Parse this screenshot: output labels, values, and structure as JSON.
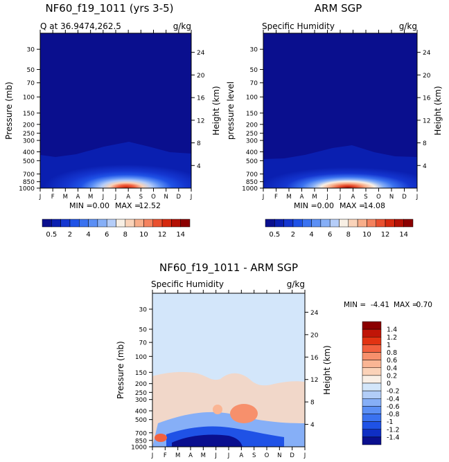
{
  "chart_data": [
    {
      "type": "contour",
      "id": "model",
      "title": "NF60_f19_1011 (yrs 3-5)",
      "subtitle": "Q at 36.9474,262.5",
      "units": "g/kg",
      "ylabel": "Pressure (mb)",
      "y2label": "Height (km)",
      "min_label": "MIN =",
      "min_value": "0.00",
      "max_label": "MAX =",
      "max_value": "12.52",
      "peak": 12.52
    },
    {
      "type": "contour",
      "id": "obs",
      "title": "ARM SGP",
      "subtitle": "Specific Humidity",
      "units": "g/kg",
      "ylabel": "pressure level",
      "y2label": "Height (km)",
      "min_label": "MIN =",
      "min_value": "0.00",
      "max_label": "MAX =",
      "max_value": "14.08",
      "peak": 14.08
    },
    {
      "type": "contour",
      "id": "diff",
      "title": "NF60_f19_1011 - ARM SGP",
      "subtitle": "Specific Humidity",
      "units": "g/kg",
      "ylabel": "Pressure (mb)",
      "y2label": "Height (km)",
      "min_label": "MIN =",
      "min_value": "-4.41",
      "max_label": "MAX =",
      "max_value": "0.70"
    }
  ],
  "axes": {
    "months": [
      "J",
      "F",
      "M",
      "A",
      "M",
      "J",
      "J",
      "A",
      "S",
      "O",
      "N",
      "D",
      "J"
    ],
    "pressure_ticks": [
      30,
      50,
      70,
      100,
      150,
      200,
      250,
      300,
      400,
      500,
      700,
      850,
      1000
    ],
    "pressure_ticks_obs": [
      30,
      50,
      70,
      100,
      150,
      200,
      250,
      300,
      400,
      500,
      700,
      850,
      1000
    ],
    "height_ticks": [
      4,
      8,
      12,
      16,
      20,
      24
    ],
    "pressure_range": [
      20,
      1000
    ]
  },
  "colorbar_top": {
    "labels": [
      "0.5",
      "2",
      "4",
      "6",
      "8",
      "10",
      "12",
      "14"
    ],
    "colors": [
      "#0a0f8e",
      "#0a1fb0",
      "#1436d0",
      "#1f52e6",
      "#3a72f0",
      "#5b8ff5",
      "#86aff7",
      "#b5cdf8",
      "#f8efe4",
      "#fad3b9",
      "#f8ae8a",
      "#f4825e",
      "#e9502f",
      "#d5280e",
      "#b31004",
      "#8b0000"
    ]
  },
  "colorbar_diff": {
    "labels": [
      "1.4",
      "1.2",
      "1",
      "0.8",
      "0.6",
      "0.4",
      "0.2",
      "0",
      "-0.2",
      "-0.4",
      "-0.6",
      "-0.8",
      "-1",
      "-1.2",
      "-1.4"
    ],
    "colors": [
      "#8b0000",
      "#c01507",
      "#e23312",
      "#f2603e",
      "#f7906c",
      "#fab594",
      "#fbd2b8",
      "#f9efe6",
      "#d3e6fa",
      "#b2cdf7",
      "#86aff7",
      "#5b8ff5",
      "#3a72f0",
      "#1f52e6",
      "#0f2fc4",
      "#0a0f8e"
    ]
  }
}
